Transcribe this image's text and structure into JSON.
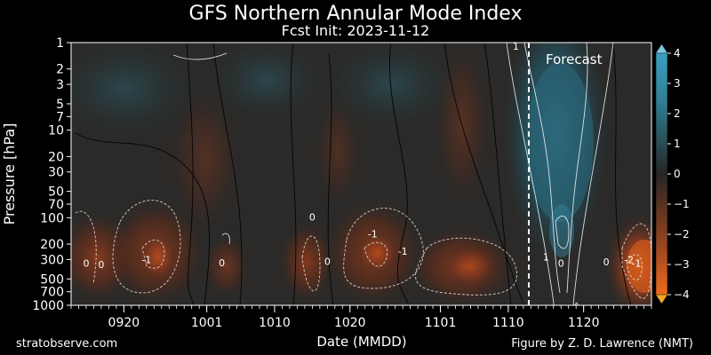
{
  "chart_data": {
    "type": "heatmap",
    "title": "GFS Northern Annular Mode Index",
    "subtitle": "Fcst Init: 2023-11-12",
    "xlabel": "Date (MMDD)",
    "ylabel": "Pressure [hPa]",
    "x_ticks": [
      "0920",
      "1001",
      "1010",
      "1020",
      "1101",
      "1110",
      "1120"
    ],
    "y_ticks": [
      1,
      2,
      3,
      5,
      7,
      10,
      20,
      30,
      50,
      70,
      100,
      200,
      300,
      500,
      700,
      1000
    ],
    "y_scale": "log",
    "ylim": [
      1000,
      1
    ],
    "colorbar": {
      "ticks": [
        "4",
        "3",
        "2",
        "1",
        "0",
        "−1",
        "−2",
        "−3",
        "−4"
      ],
      "values": [
        4,
        3,
        2,
        1,
        0,
        -1,
        -2,
        -3,
        -4
      ],
      "positive_color": "#2f8fa8",
      "negative_color": "#e85e1c",
      "neutral_color": "#272523"
    },
    "forecast_label": "Forecast",
    "contour_labels": [
      {
        "text": "0",
        "date": "0915",
        "p": 330
      },
      {
        "text": "0",
        "date": "0917",
        "p": 340
      },
      {
        "text": "-1",
        "date": "0923",
        "p": 300
      },
      {
        "text": "0",
        "date": "1003",
        "p": 325
      },
      {
        "text": "0",
        "date": "1015",
        "p": 98
      },
      {
        "text": "0",
        "date": "1017",
        "p": 315
      },
      {
        "text": "-1",
        "date": "1023",
        "p": 152
      },
      {
        "text": "-1",
        "date": "1027",
        "p": 240
      },
      {
        "text": "1",
        "date": "1111",
        "p": 1.1
      },
      {
        "text": "1",
        "date": "1115",
        "p": 280
      },
      {
        "text": "0",
        "date": "1117",
        "p": 330
      },
      {
        "text": "0",
        "date": "1123",
        "p": 320
      },
      {
        "text": "-2",
        "date": "1126",
        "p": 300
      },
      {
        "text": "-1",
        "date": "1127",
        "p": 330
      }
    ]
  },
  "footer": {
    "left": "stratobserve.com",
    "right": "Figure by Z. D. Lawrence (NMT)"
  }
}
